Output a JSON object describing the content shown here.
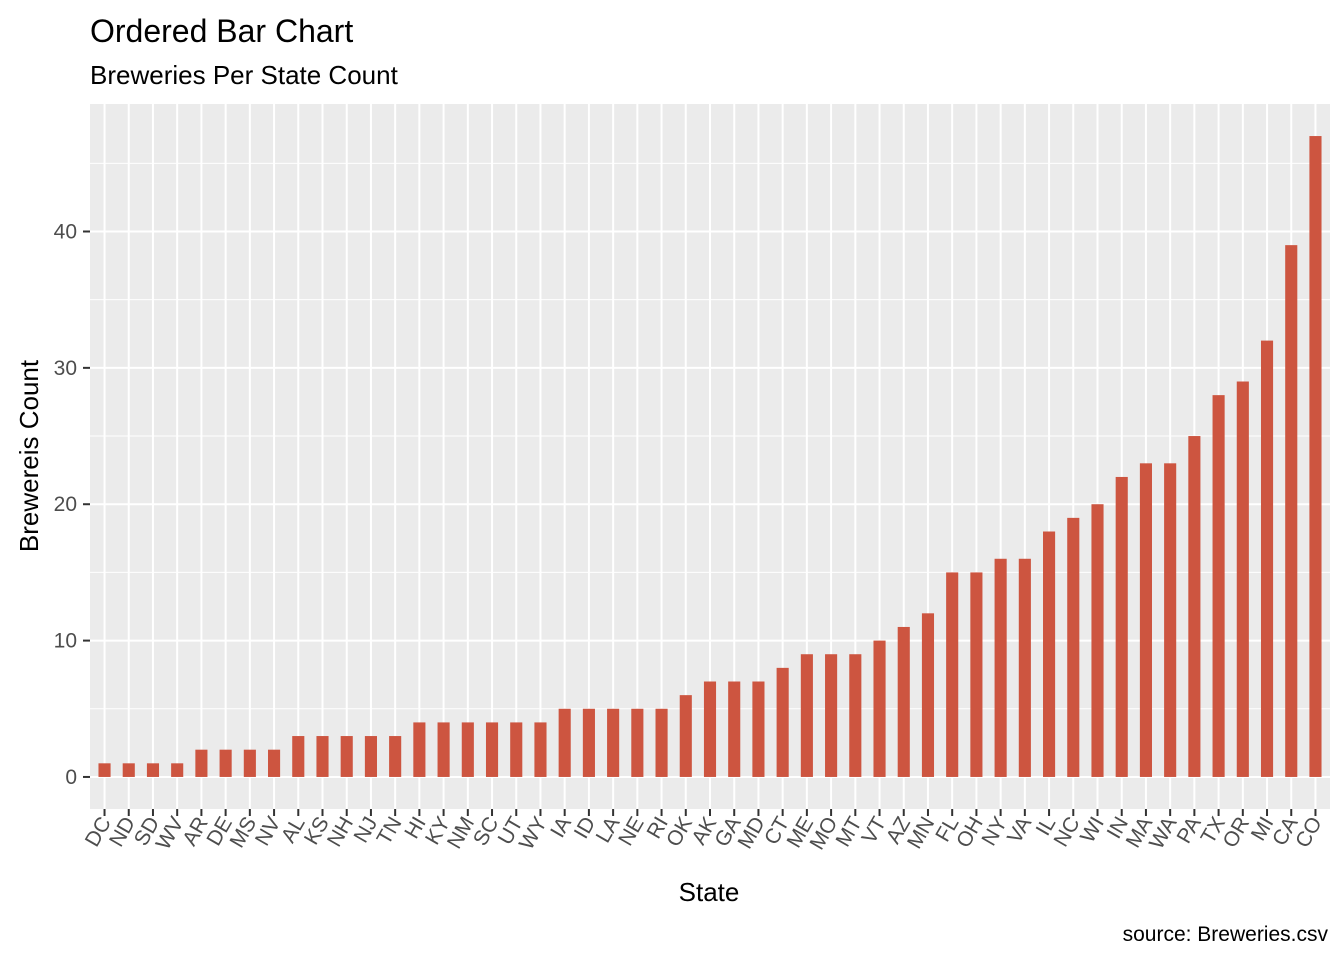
{
  "chart_data": {
    "type": "bar",
    "title": "Ordered Bar Chart",
    "subtitle": "Breweries Per State Count",
    "xlabel": "State",
    "ylabel": "Brewereis Count",
    "caption": "source: Breweries.csv",
    "categories": [
      "DC",
      "ND",
      "SD",
      "WV",
      "AR",
      "DE",
      "MS",
      "NV",
      "AL",
      "KS",
      "NH",
      "NJ",
      "TN",
      "HI",
      "KY",
      "NM",
      "SC",
      "UT",
      "WY",
      "IA",
      "ID",
      "LA",
      "NE",
      "RI",
      "OK",
      "AK",
      "GA",
      "MD",
      "CT",
      "ME",
      "MO",
      "MT",
      "VT",
      "AZ",
      "MN",
      "FL",
      "OH",
      "NY",
      "VA",
      "IL",
      "NC",
      "WI",
      "IN",
      "MA",
      "WA",
      "PA",
      "TX",
      "OR",
      "MI",
      "CA",
      "CO"
    ],
    "values": [
      1,
      1,
      1,
      1,
      2,
      2,
      2,
      2,
      3,
      3,
      3,
      3,
      3,
      4,
      4,
      4,
      4,
      4,
      4,
      5,
      5,
      5,
      5,
      5,
      6,
      7,
      7,
      7,
      8,
      9,
      9,
      9,
      10,
      11,
      12,
      15,
      15,
      16,
      16,
      18,
      19,
      20,
      22,
      23,
      23,
      25,
      28,
      29,
      32,
      39,
      47
    ],
    "yticks": [
      0,
      10,
      20,
      30,
      40
    ],
    "ylim": [
      -2.35,
      49.35
    ],
    "bar_color": "#cd5540",
    "panel_color": "#ebebeb",
    "grid_color": "#ffffff",
    "grid": true,
    "legend": "none"
  }
}
